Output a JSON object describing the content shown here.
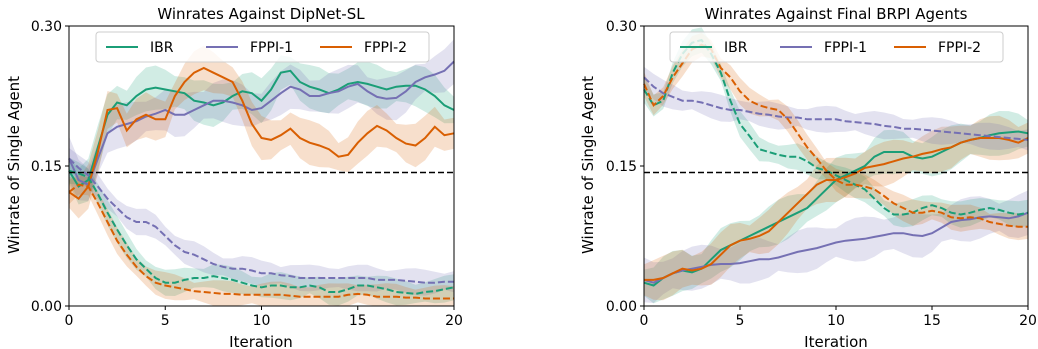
{
  "colors": {
    "IBR": "#1b9e77",
    "FPPI-1": "#7570b3",
    "FPPI-2": "#d95f02"
  },
  "chart_data": [
    {
      "type": "line",
      "title": "Winrates Against DipNet-SL",
      "xlabel": "Iteration",
      "ylabel": "Winrate of Single Agent",
      "xlim": [
        0,
        20
      ],
      "ylim": [
        0.0,
        0.3
      ],
      "xticks": [
        "0",
        "5",
        "10",
        "15",
        "20"
      ],
      "yticks": [
        "0.00",
        "0.15",
        "0.30"
      ],
      "reference_line": 0.143,
      "legend_position": "top",
      "legend": [
        "IBR",
        "FPPI-1",
        "FPPI-2"
      ],
      "x": [
        0,
        0.5,
        1,
        1.5,
        2,
        2.5,
        3,
        3.5,
        4,
        4.5,
        5,
        5.5,
        6,
        6.5,
        7,
        7.5,
        8,
        8.5,
        9,
        9.5,
        10,
        10.5,
        11,
        11.5,
        12,
        12.5,
        13,
        13.5,
        14,
        14.5,
        15,
        15.5,
        16,
        16.5,
        17,
        17.5,
        18,
        18.5,
        19,
        19.5,
        20
      ],
      "series": [
        {
          "name": "IBR",
          "style": "solid",
          "values": [
            0.145,
            0.128,
            0.135,
            0.17,
            0.205,
            0.218,
            0.215,
            0.225,
            0.232,
            0.234,
            0.232,
            0.23,
            0.228,
            0.22,
            0.218,
            0.215,
            0.218,
            0.225,
            0.23,
            0.228,
            0.22,
            0.232,
            0.25,
            0.252,
            0.24,
            0.235,
            0.232,
            0.228,
            0.232,
            0.238,
            0.24,
            0.238,
            0.235,
            0.232,
            0.235,
            0.236,
            0.236,
            0.232,
            0.225,
            0.215,
            0.21
          ]
        },
        {
          "name": "FPPI-1",
          "style": "solid",
          "values": [
            0.158,
            0.135,
            0.13,
            0.158,
            0.185,
            0.192,
            0.195,
            0.198,
            0.203,
            0.206,
            0.21,
            0.205,
            0.205,
            0.21,
            0.215,
            0.22,
            0.22,
            0.218,
            0.215,
            0.21,
            0.212,
            0.22,
            0.228,
            0.235,
            0.232,
            0.225,
            0.225,
            0.228,
            0.23,
            0.235,
            0.238,
            0.23,
            0.224,
            0.222,
            0.223,
            0.23,
            0.24,
            0.245,
            0.248,
            0.252,
            0.262
          ]
        },
        {
          "name": "FPPI-2",
          "style": "solid",
          "values": [
            0.122,
            0.115,
            0.128,
            0.165,
            0.21,
            0.212,
            0.188,
            0.2,
            0.205,
            0.2,
            0.2,
            0.225,
            0.24,
            0.25,
            0.255,
            0.25,
            0.245,
            0.24,
            0.22,
            0.195,
            0.18,
            0.178,
            0.183,
            0.19,
            0.18,
            0.175,
            0.172,
            0.168,
            0.16,
            0.162,
            0.175,
            0.185,
            0.193,
            0.188,
            0.18,
            0.174,
            0.172,
            0.18,
            0.192,
            0.183,
            0.185
          ]
        },
        {
          "name": "IBR",
          "style": "dashed",
          "values": [
            0.145,
            0.142,
            0.138,
            0.12,
            0.1,
            0.082,
            0.065,
            0.05,
            0.04,
            0.03,
            0.025,
            0.025,
            0.028,
            0.03,
            0.03,
            0.032,
            0.03,
            0.028,
            0.025,
            0.022,
            0.02,
            0.022,
            0.022,
            0.02,
            0.02,
            0.022,
            0.02,
            0.015,
            0.015,
            0.018,
            0.022,
            0.022,
            0.02,
            0.018,
            0.015,
            0.014,
            0.013,
            0.015,
            0.016,
            0.018,
            0.02
          ]
        },
        {
          "name": "FPPI-1",
          "style": "dashed",
          "values": [
            0.158,
            0.148,
            0.14,
            0.128,
            0.115,
            0.105,
            0.095,
            0.09,
            0.09,
            0.085,
            0.075,
            0.065,
            0.058,
            0.055,
            0.05,
            0.045,
            0.042,
            0.04,
            0.04,
            0.038,
            0.035,
            0.035,
            0.033,
            0.032,
            0.03,
            0.03,
            0.03,
            0.03,
            0.03,
            0.03,
            0.03,
            0.03,
            0.028,
            0.028,
            0.028,
            0.027,
            0.026,
            0.025,
            0.025,
            0.026,
            0.026
          ]
        },
        {
          "name": "FPPI-2",
          "style": "dashed",
          "values": [
            0.122,
            0.13,
            0.128,
            0.11,
            0.09,
            0.07,
            0.055,
            0.042,
            0.032,
            0.025,
            0.022,
            0.02,
            0.018,
            0.016,
            0.015,
            0.014,
            0.013,
            0.013,
            0.012,
            0.012,
            0.012,
            0.012,
            0.012,
            0.011,
            0.01,
            0.01,
            0.01,
            0.01,
            0.01,
            0.012,
            0.013,
            0.012,
            0.01,
            0.01,
            0.01,
            0.009,
            0.009,
            0.008,
            0.008,
            0.008,
            0.008
          ]
        }
      ]
    },
    {
      "type": "line",
      "title": "Winrates Against Final BRPI Agents",
      "xlabel": "Iteration",
      "ylabel": "Winrate of Single Agent",
      "xlim": [
        0,
        20
      ],
      "ylim": [
        0.0,
        0.3
      ],
      "xticks": [
        "0",
        "5",
        "10",
        "15",
        "20"
      ],
      "yticks": [
        "0.00",
        "0.15",
        "0.30"
      ],
      "reference_line": 0.143,
      "legend_position": "top",
      "legend": [
        "IBR",
        "FPPI-1",
        "FPPI-2"
      ],
      "x": [
        0,
        0.5,
        1,
        1.5,
        2,
        2.5,
        3,
        3.5,
        4,
        4.5,
        5,
        5.5,
        6,
        6.5,
        7,
        7.5,
        8,
        8.5,
        9,
        9.5,
        10,
        10.5,
        11,
        11.5,
        12,
        12.5,
        13,
        13.5,
        14,
        14.5,
        15,
        15.5,
        16,
        16.5,
        17,
        17.5,
        18,
        18.5,
        19,
        19.5,
        20
      ],
      "series": [
        {
          "name": "IBR",
          "style": "solid",
          "values": [
            0.025,
            0.022,
            0.03,
            0.035,
            0.038,
            0.036,
            0.04,
            0.05,
            0.06,
            0.065,
            0.07,
            0.075,
            0.08,
            0.085,
            0.09,
            0.095,
            0.1,
            0.105,
            0.115,
            0.125,
            0.135,
            0.14,
            0.145,
            0.15,
            0.16,
            0.165,
            0.165,
            0.165,
            0.16,
            0.158,
            0.16,
            0.165,
            0.17,
            0.175,
            0.178,
            0.18,
            0.183,
            0.185,
            0.186,
            0.187,
            0.185
          ]
        },
        {
          "name": "FPPI-1",
          "style": "solid",
          "values": [
            0.028,
            0.025,
            0.03,
            0.035,
            0.038,
            0.04,
            0.042,
            0.044,
            0.045,
            0.045,
            0.046,
            0.048,
            0.05,
            0.05,
            0.052,
            0.055,
            0.058,
            0.06,
            0.062,
            0.065,
            0.068,
            0.07,
            0.071,
            0.072,
            0.074,
            0.076,
            0.078,
            0.078,
            0.076,
            0.075,
            0.078,
            0.084,
            0.09,
            0.092,
            0.093,
            0.095,
            0.096,
            0.095,
            0.094,
            0.096,
            0.1
          ]
        },
        {
          "name": "FPPI-2",
          "style": "solid",
          "values": [
            0.028,
            0.028,
            0.03,
            0.035,
            0.04,
            0.038,
            0.04,
            0.045,
            0.055,
            0.065,
            0.07,
            0.072,
            0.075,
            0.08,
            0.09,
            0.1,
            0.11,
            0.12,
            0.13,
            0.135,
            0.135,
            0.138,
            0.142,
            0.148,
            0.15,
            0.152,
            0.155,
            0.158,
            0.16,
            0.163,
            0.165,
            0.168,
            0.17,
            0.175,
            0.178,
            0.18,
            0.18,
            0.18,
            0.178,
            0.175,
            0.18
          ]
        },
        {
          "name": "IBR",
          "style": "dashed",
          "values": [
            0.232,
            0.215,
            0.22,
            0.25,
            0.27,
            0.282,
            0.285,
            0.27,
            0.25,
            0.22,
            0.195,
            0.182,
            0.168,
            0.165,
            0.162,
            0.16,
            0.16,
            0.155,
            0.148,
            0.145,
            0.14,
            0.135,
            0.13,
            0.125,
            0.115,
            0.105,
            0.098,
            0.098,
            0.1,
            0.105,
            0.108,
            0.105,
            0.1,
            0.098,
            0.1,
            0.103,
            0.105,
            0.103,
            0.1,
            0.098,
            0.1
          ]
        },
        {
          "name": "FPPI-1",
          "style": "dashed",
          "values": [
            0.245,
            0.235,
            0.228,
            0.224,
            0.22,
            0.22,
            0.218,
            0.215,
            0.212,
            0.21,
            0.21,
            0.208,
            0.206,
            0.205,
            0.203,
            0.202,
            0.202,
            0.2,
            0.2,
            0.2,
            0.2,
            0.198,
            0.197,
            0.196,
            0.195,
            0.193,
            0.192,
            0.19,
            0.19,
            0.189,
            0.188,
            0.187,
            0.186,
            0.185,
            0.184,
            0.183,
            0.182,
            0.181,
            0.18,
            0.179,
            0.178
          ]
        },
        {
          "name": "FPPI-2",
          "style": "dashed",
          "values": [
            0.238,
            0.215,
            0.225,
            0.245,
            0.26,
            0.275,
            0.28,
            0.275,
            0.255,
            0.245,
            0.23,
            0.22,
            0.215,
            0.212,
            0.21,
            0.2,
            0.185,
            0.17,
            0.158,
            0.145,
            0.135,
            0.13,
            0.13,
            0.128,
            0.125,
            0.118,
            0.11,
            0.105,
            0.1,
            0.1,
            0.102,
            0.1,
            0.095,
            0.094,
            0.095,
            0.094,
            0.09,
            0.088,
            0.086,
            0.085,
            0.085
          ]
        }
      ]
    }
  ]
}
